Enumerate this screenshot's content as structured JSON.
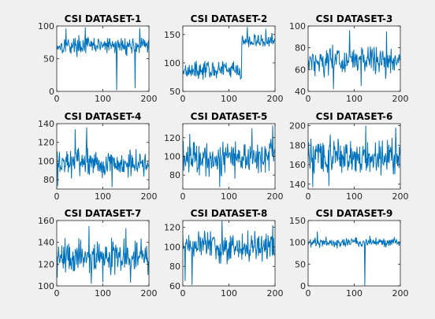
{
  "figure": {
    "background": "#f0f0f0",
    "line_color": "#0072bd",
    "axes_background": "#ffffff"
  },
  "chart_data": [
    {
      "type": "line",
      "title": "CSI DATASET-1",
      "xlim": [
        0,
        200
      ],
      "ylim": [
        0,
        100
      ],
      "xticks": [
        0,
        100,
        200
      ],
      "yticks": [
        0,
        50,
        100
      ],
      "n_points": 200,
      "baseline": 70,
      "spread": 8,
      "jump_at": null,
      "jump_to": null,
      "dips": [
        [
          130,
          2
        ],
        [
          170,
          5
        ]
      ],
      "spikes": [
        [
          62,
          98
        ],
        [
          20,
          96
        ],
        [
          180,
          97
        ]
      ]
    },
    {
      "type": "line",
      "title": "CSI DATASET-2",
      "xlim": [
        0,
        200
      ],
      "ylim": [
        50,
        165
      ],
      "xticks": [
        0,
        100,
        200
      ],
      "yticks": [
        50,
        100,
        150
      ],
      "n_points": 200,
      "baseline": 88,
      "spread": 9,
      "jump_at": 128,
      "jump_to": 138,
      "dips": [
        [
          125,
          72
        ]
      ],
      "spikes": [
        [
          140,
          163
        ],
        [
          180,
          160
        ]
      ]
    },
    {
      "type": "line",
      "title": "CSI DATASET-3",
      "xlim": [
        0,
        200
      ],
      "ylim": [
        40,
        100
      ],
      "xticks": [
        0,
        100,
        200
      ],
      "yticks": [
        40,
        60,
        80,
        100
      ],
      "n_points": 200,
      "baseline": 68,
      "spread": 8,
      "jump_at": null,
      "jump_to": null,
      "dips": [
        [
          55,
          42
        ],
        [
          115,
          45
        ]
      ],
      "spikes": [
        [
          90,
          96
        ],
        [
          170,
          95
        ]
      ]
    },
    {
      "type": "line",
      "title": "CSI DATASET-4",
      "xlim": [
        0,
        200
      ],
      "ylim": [
        70,
        140
      ],
      "xticks": [
        0,
        100,
        200
      ],
      "yticks": [
        80,
        100,
        120,
        140
      ],
      "n_points": 200,
      "baseline": 98,
      "spread": 9,
      "jump_at": null,
      "jump_to": null,
      "dips": [
        [
          2,
          73
        ],
        [
          120,
          72
        ]
      ],
      "spikes": [
        [
          40,
          134
        ],
        [
          65,
          136
        ]
      ]
    },
    {
      "type": "line",
      "title": "CSI DATASET-5",
      "xlim": [
        0,
        200
      ],
      "ylim": [
        65,
        135
      ],
      "xticks": [
        0,
        100,
        200
      ],
      "yticks": [
        80,
        100,
        120
      ],
      "n_points": 200,
      "baseline": 100,
      "spread": 12,
      "jump_at": null,
      "jump_to": null,
      "dips": [
        [
          80,
          67
        ],
        [
          150,
          72
        ]
      ],
      "spikes": [
        [
          150,
          130
        ],
        [
          195,
          133
        ]
      ]
    },
    {
      "type": "line",
      "title": "CSI DATASET-6",
      "xlim": [
        0,
        200
      ],
      "ylim": [
        135,
        202
      ],
      "xticks": [
        0,
        100,
        200
      ],
      "yticks": [
        140,
        160,
        180,
        200
      ],
      "n_points": 200,
      "baseline": 168,
      "spread": 11,
      "jump_at": null,
      "jump_to": null,
      "dips": [
        [
          10,
          137
        ],
        [
          45,
          138
        ]
      ],
      "spikes": [
        [
          125,
          200
        ],
        [
          190,
          198
        ]
      ]
    },
    {
      "type": "line",
      "title": "CSI DATASET-7",
      "xlim": [
        0,
        200
      ],
      "ylim": [
        100,
        160
      ],
      "xticks": [
        0,
        100,
        200
      ],
      "yticks": [
        100,
        120,
        140,
        160
      ],
      "n_points": 200,
      "baseline": 126,
      "spread": 10,
      "jump_at": null,
      "jump_to": null,
      "dips": [
        [
          75,
          102
        ],
        [
          160,
          103
        ]
      ],
      "spikes": [
        [
          70,
          155
        ],
        [
          150,
          153
        ]
      ]
    },
    {
      "type": "line",
      "title": "CSI DATASET-8",
      "xlim": [
        0,
        200
      ],
      "ylim": [
        60,
        127
      ],
      "xticks": [
        0,
        100,
        200
      ],
      "yticks": [
        60,
        80,
        100,
        120
      ],
      "n_points": 200,
      "baseline": 100,
      "spread": 9,
      "jump_at": null,
      "jump_to": null,
      "dips": [
        [
          20,
          61
        ],
        [
          5,
          65
        ]
      ],
      "spikes": [
        [
          85,
          127
        ],
        [
          195,
          122
        ]
      ]
    },
    {
      "type": "line",
      "title": "CSI DATASET-9",
      "xlim": [
        0,
        200
      ],
      "ylim": [
        0,
        150
      ],
      "xticks": [
        0,
        100,
        200
      ],
      "yticks": [
        0,
        50,
        100,
        150
      ],
      "n_points": 200,
      "baseline": 100,
      "spread": 7,
      "jump_at": null,
      "jump_to": null,
      "dips": [
        [
          123,
          1
        ]
      ],
      "spikes": [
        [
          20,
          125
        ]
      ]
    }
  ]
}
